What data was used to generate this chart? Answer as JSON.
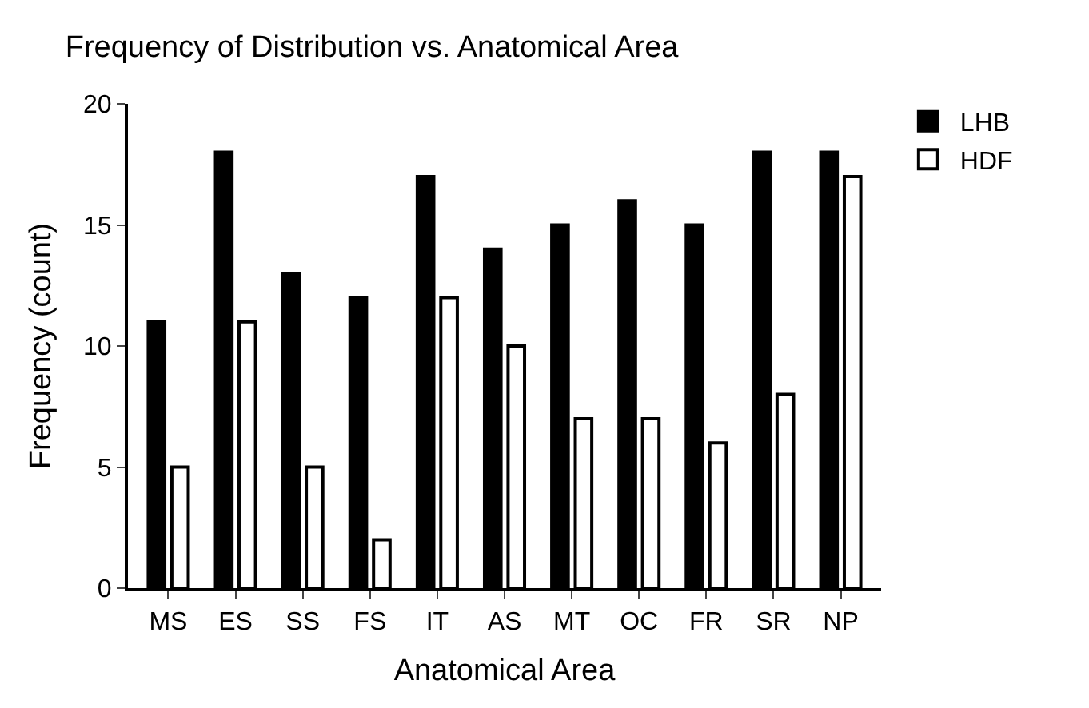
{
  "chart_data": {
    "type": "bar",
    "title": "Frequency of Distribution vs. Anatomical Area",
    "xlabel": "Anatomical Area",
    "ylabel": "Frequency (count)",
    "categories": [
      "MS",
      "ES",
      "SS",
      "FS",
      "IT",
      "AS",
      "MT",
      "OC",
      "FR",
      "SR",
      "NP"
    ],
    "series": [
      {
        "name": "LHB",
        "color": "#000000",
        "values": [
          11,
          18,
          13,
          12,
          17,
          14,
          15,
          16,
          15,
          18,
          18
        ]
      },
      {
        "name": "HDF",
        "color": "#ffffff",
        "values": [
          5,
          11,
          5,
          2,
          12,
          10,
          7,
          7,
          6,
          8,
          17
        ]
      }
    ],
    "ylim": [
      0,
      20
    ],
    "yticks": [
      0,
      5,
      10,
      15,
      20
    ],
    "legend": "top right"
  }
}
